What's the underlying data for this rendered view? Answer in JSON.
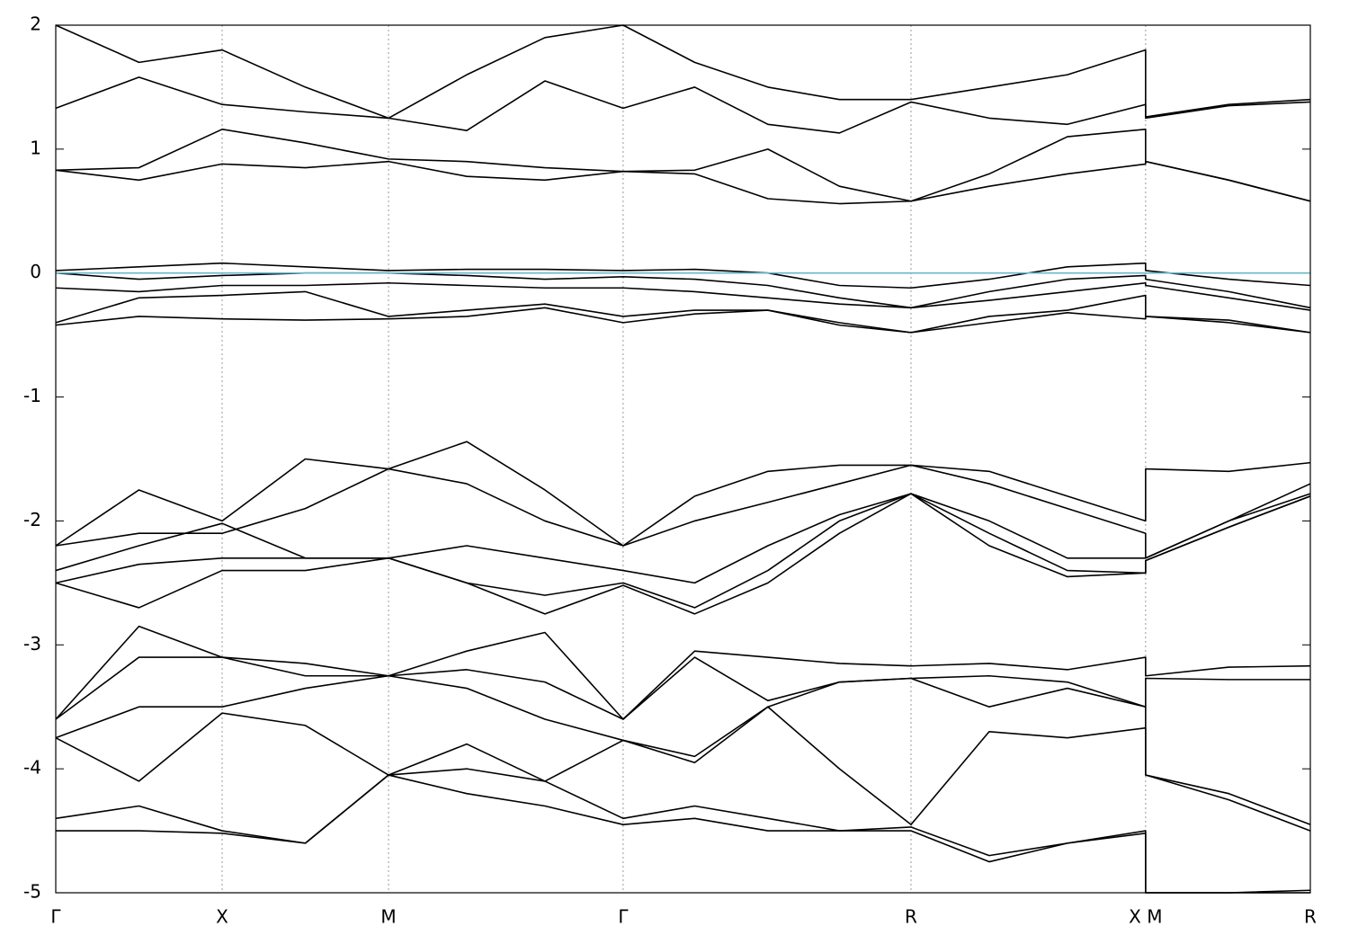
{
  "chart_data": {
    "type": "line",
    "x": [
      0,
      0.5,
      1,
      1.5,
      2,
      2.47,
      2.94,
      3.41,
      3.84,
      4.28,
      4.71,
      5.14,
      5.61,
      6.08,
      6.55,
      6.55,
      7.05,
      7.54
    ],
    "xlim": [
      0,
      7.54
    ],
    "xticks": [
      {
        "value": 0,
        "label": "Γ"
      },
      {
        "value": 1,
        "label": "X"
      },
      {
        "value": 2,
        "label": "M"
      },
      {
        "value": 3.41,
        "label": "Γ"
      },
      {
        "value": 5.14,
        "label": "R"
      },
      {
        "value": 6.55,
        "label": "X M"
      },
      {
        "value": 7.54,
        "label": "R"
      }
    ],
    "ylim": [
      -5,
      2
    ],
    "yticks": [
      -5,
      -4,
      -3,
      -2,
      -1,
      0,
      1,
      2
    ],
    "xgrid": true,
    "series": [
      {
        "color": "#000000",
        "values": [
          0.83,
          0.75,
          0.88,
          0.85,
          0.9,
          0.78,
          0.75,
          0.82,
          0.8,
          0.6,
          0.56,
          0.58,
          0.7,
          0.8,
          0.88,
          0.9,
          0.75,
          0.58
        ]
      },
      {
        "color": "#000000",
        "values": [
          0.83,
          0.85,
          1.16,
          1.05,
          0.92,
          0.9,
          0.85,
          0.82,
          0.83,
          1.0,
          0.7,
          0.58,
          0.8,
          1.1,
          1.16,
          0.9,
          0.75,
          0.58
        ]
      },
      {
        "color": "#000000",
        "values": [
          1.33,
          1.58,
          1.36,
          1.3,
          1.25,
          1.15,
          1.55,
          1.33,
          1.5,
          1.2,
          1.13,
          1.38,
          1.25,
          1.2,
          1.36,
          1.25,
          1.35,
          1.38
        ]
      },
      {
        "color": "#000000",
        "values": [
          2.0,
          1.7,
          1.8,
          1.5,
          1.25,
          1.6,
          1.9,
          2.0,
          1.7,
          1.5,
          1.4,
          1.4,
          1.5,
          1.6,
          1.8,
          1.26,
          1.36,
          1.4
        ]
      },
      {
        "color": "#000000",
        "values": [
          0.02,
          0.05,
          0.08,
          0.05,
          0.02,
          0.03,
          0.03,
          0.02,
          0.03,
          0,
          -0.1,
          -0.12,
          -0.05,
          0.05,
          0.08,
          0.02,
          -0.05,
          -0.1
        ]
      },
      {
        "color": "#000000",
        "values": [
          0,
          -0.05,
          -0.02,
          0,
          0,
          -0.02,
          -0.05,
          -0.03,
          -0.05,
          -0.1,
          -0.2,
          -0.28,
          -0.15,
          -0.05,
          -0.02,
          -0.05,
          -0.15,
          -0.28
        ]
      },
      {
        "color": "#000000",
        "values": [
          -0.12,
          -0.15,
          -0.1,
          -0.1,
          -0.08,
          -0.1,
          -0.12,
          -0.12,
          -0.15,
          -0.2,
          -0.25,
          -0.28,
          -0.22,
          -0.15,
          -0.08,
          -0.1,
          -0.2,
          -0.3
        ]
      },
      {
        "color": "#000000",
        "values": [
          -0.4,
          -0.2,
          -0.18,
          -0.15,
          -0.35,
          -0.3,
          -0.25,
          -0.35,
          -0.3,
          -0.3,
          -0.4,
          -0.48,
          -0.35,
          -0.3,
          -0.18,
          -0.35,
          -0.38,
          -0.48
        ]
      },
      {
        "color": "#000000",
        "values": [
          -0.42,
          -0.35,
          -0.37,
          -0.38,
          -0.37,
          -0.35,
          -0.28,
          -0.4,
          -0.33,
          -0.3,
          -0.42,
          -0.48,
          -0.4,
          -0.32,
          -0.37,
          -0.35,
          -0.4,
          -0.48
        ]
      },
      {
        "color": "#000000",
        "values": [
          -2.2,
          -1.75,
          -2.0,
          -1.5,
          -1.58,
          -1.36,
          -1.75,
          -2.2,
          -1.8,
          -1.6,
          -1.55,
          -1.55,
          -1.6,
          -1.8,
          -2.0,
          -1.58,
          -1.6,
          -1.53
        ]
      },
      {
        "color": "#000000",
        "values": [
          -2.2,
          -2.1,
          -2.1,
          -1.9,
          -1.58,
          -1.7,
          -2.0,
          -2.2,
          -2.0,
          -1.85,
          -1.7,
          -1.55,
          -1.7,
          -1.9,
          -2.1,
          -2.3,
          -2.0,
          -1.7
        ]
      },
      {
        "color": "#000000",
        "values": [
          -2.4,
          -2.2,
          -2.02,
          -2.3,
          -2.3,
          -2.2,
          -2.3,
          -2.4,
          -2.5,
          -2.2,
          -1.95,
          -1.78,
          -2.0,
          -2.3,
          -2.3,
          -2.3,
          -2.0,
          -1.78
        ]
      },
      {
        "color": "#000000",
        "values": [
          -2.5,
          -2.35,
          -2.3,
          -2.3,
          -2.3,
          -2.5,
          -2.6,
          -2.5,
          -2.7,
          -2.4,
          -2.0,
          -1.78,
          -2.1,
          -2.4,
          -2.42,
          -2.32,
          -2.05,
          -1.8
        ]
      },
      {
        "color": "#000000",
        "values": [
          -2.5,
          -2.7,
          -2.4,
          -2.4,
          -2.3,
          -2.5,
          -2.75,
          -2.52,
          -2.75,
          -2.5,
          -2.1,
          -1.78,
          -2.2,
          -2.45,
          -2.42,
          -2.32,
          -2.05,
          -1.8
        ]
      },
      {
        "color": "#000000",
        "values": [
          -3.6,
          -3.1,
          -3.1,
          -3.25,
          -3.25,
          -3.05,
          -2.9,
          -3.6,
          -3.05,
          -3.1,
          -3.15,
          -3.17,
          -3.15,
          -3.2,
          -3.1,
          -3.25,
          -3.18,
          -3.17
        ]
      },
      {
        "color": "#000000",
        "values": [
          -3.6,
          -2.85,
          -3.1,
          -3.15,
          -3.25,
          -3.2,
          -3.3,
          -3.6,
          -3.1,
          -3.45,
          -3.3,
          -3.27,
          -3.25,
          -3.3,
          -3.5,
          -3.27,
          -3.28,
          -3.28
        ]
      },
      {
        "color": "#000000",
        "values": [
          -3.75,
          -3.5,
          -3.5,
          -3.35,
          -3.25,
          -3.35,
          -3.6,
          -3.77,
          -3.9,
          -3.5,
          -3.3,
          -3.27,
          -3.5,
          -3.35,
          -3.5,
          -4.05,
          -4.2,
          -4.45
        ]
      },
      {
        "color": "#000000",
        "values": [
          -3.75,
          -4.1,
          -3.55,
          -3.65,
          -4.05,
          -3.8,
          -4.1,
          -3.77,
          -3.95,
          -3.5,
          -4.0,
          -4.45,
          -3.7,
          -3.75,
          -3.67,
          -4.05,
          -4.25,
          -4.5
        ]
      },
      {
        "color": "#000000",
        "values": [
          -4.4,
          -4.3,
          -4.5,
          -4.6,
          -4.05,
          -4.0,
          -4.1,
          -4.4,
          -4.3,
          -4.4,
          -4.5,
          -4.47,
          -4.7,
          -4.6,
          -4.5,
          -5,
          -5,
          -5
        ]
      },
      {
        "color": "#000000",
        "values": [
          -4.5,
          -4.5,
          -4.52,
          -4.6,
          -4.05,
          -4.2,
          -4.3,
          -4.45,
          -4.4,
          -4.5,
          -4.5,
          -4.5,
          -4.75,
          -4.6,
          -4.52,
          -5,
          -5,
          -4.98
        ]
      },
      {
        "color": "#6ab7c8",
        "values": [
          0,
          0,
          0,
          0,
          0,
          0,
          0,
          0,
          0,
          0,
          0,
          0,
          0,
          0,
          0,
          0,
          0,
          0
        ]
      }
    ]
  }
}
